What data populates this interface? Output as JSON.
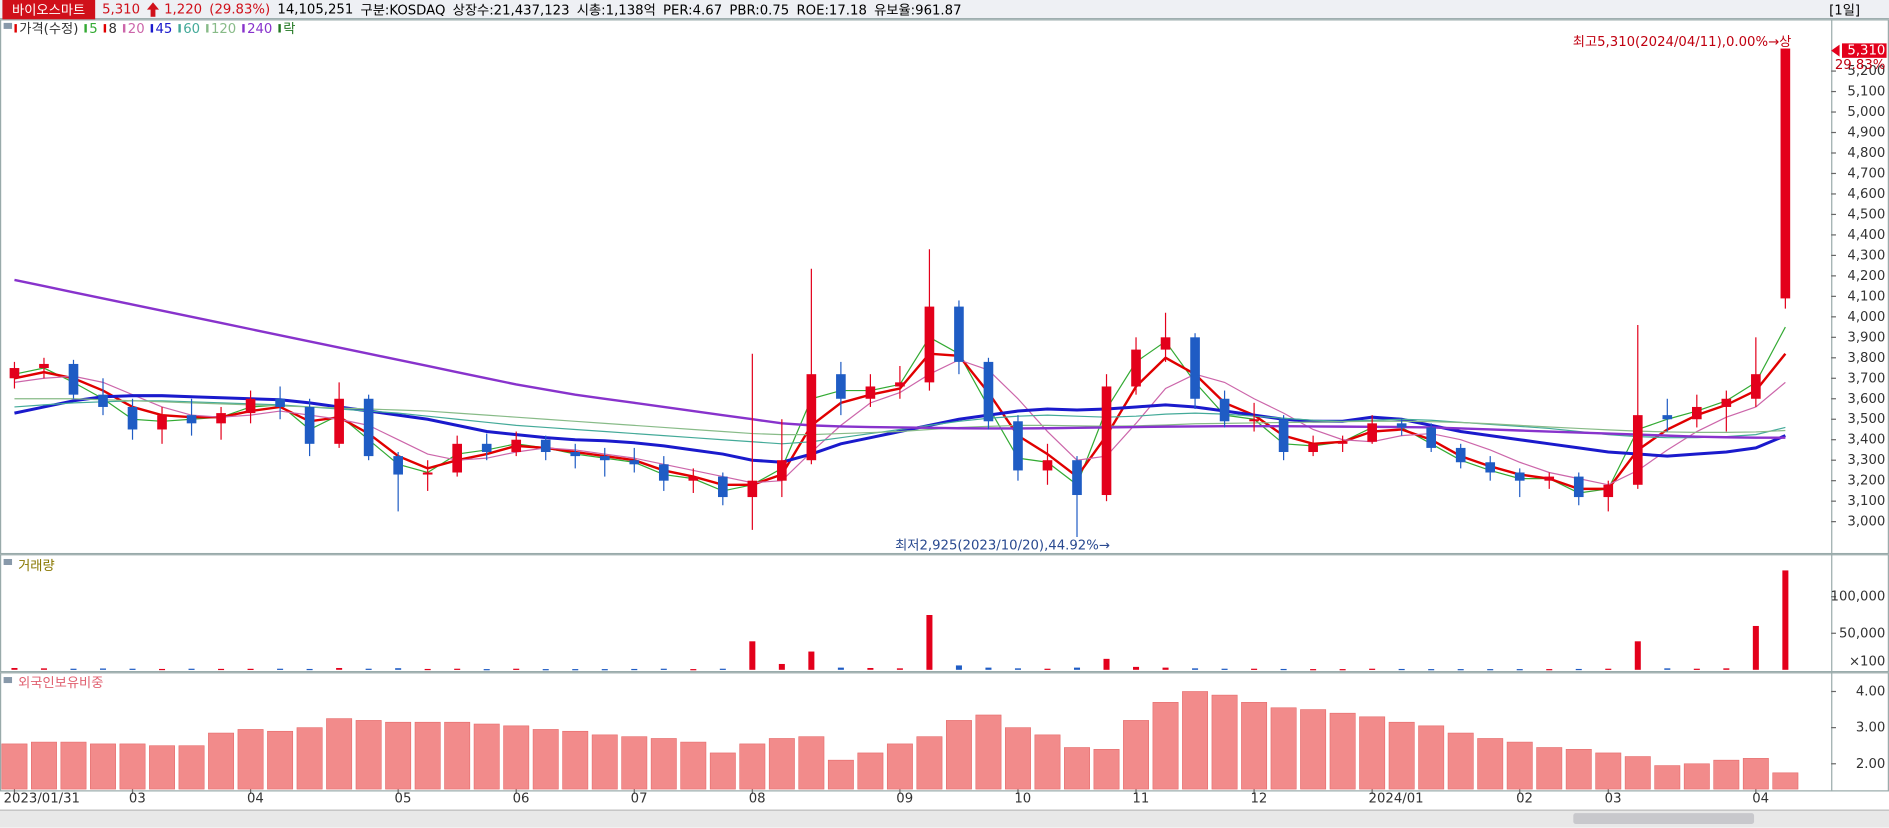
{
  "header": {
    "name": "바이오스마트",
    "price": "5,310",
    "change": "1,220",
    "change_pct": "(29.83%)",
    "volume": "14,105,251",
    "info": [
      "구분:KOSDAQ",
      "상장수:21,437,123",
      "시총:1,138억",
      "PER:4.67",
      "PBR:0.75",
      "ROE:17.18",
      "유보율:961.87"
    ],
    "period": "[1일]"
  },
  "chart_data": [
    {
      "type": "candlestick",
      "price_label": "가격(수정)",
      "legend_extra": "락",
      "categories": [
        "2023/01/31",
        null,
        null,
        null,
        "03",
        null,
        null,
        null,
        "04",
        null,
        null,
        null,
        null,
        "05",
        null,
        null,
        null,
        "06",
        null,
        null,
        null,
        "07",
        null,
        null,
        null,
        "08",
        null,
        null,
        null,
        null,
        "09",
        null,
        null,
        null,
        "10",
        null,
        null,
        null,
        "11",
        null,
        null,
        null,
        "12",
        null,
        null,
        null,
        "2024/01",
        null,
        null,
        null,
        null,
        "02",
        null,
        null,
        "03",
        null,
        null,
        null,
        null,
        "04",
        null
      ],
      "open": [
        3700,
        3750,
        3770,
        3620,
        3560,
        3450,
        3520,
        3480,
        3530,
        3600,
        3560,
        3380,
        3600,
        3320,
        3230,
        3240,
        3380,
        3340,
        3400,
        3340,
        3320,
        3300,
        3280,
        3200,
        3220,
        3120,
        3200,
        3300,
        3720,
        3600,
        3660,
        3680,
        4050,
        3780,
        3490,
        3250,
        3300,
        3130,
        3660,
        3840,
        3900,
        3600,
        3490,
        3500,
        3340,
        3380,
        3390,
        3480,
        3460,
        3360,
        3290,
        3240,
        3200,
        3220,
        3120,
        3180,
        3520,
        3500,
        3560,
        3600,
        4090
      ],
      "high": [
        3780,
        3800,
        3790,
        3700,
        3600,
        3560,
        3600,
        3560,
        3640,
        3660,
        3600,
        3680,
        3620,
        3340,
        3300,
        3420,
        3430,
        3440,
        3420,
        3380,
        3360,
        3360,
        3320,
        3260,
        3240,
        3820,
        3500,
        4235,
        3780,
        3720,
        3760,
        4330,
        4080,
        3800,
        3520,
        3380,
        3320,
        3720,
        3900,
        4020,
        3920,
        3640,
        3580,
        3520,
        3420,
        3420,
        3520,
        3500,
        3480,
        3380,
        3320,
        3260,
        3240,
        3240,
        3200,
        3960,
        3600,
        3620,
        3640,
        3900,
        5310
      ],
      "low": [
        3650,
        3700,
        3600,
        3520,
        3400,
        3380,
        3420,
        3400,
        3480,
        3500,
        3320,
        3360,
        3300,
        3050,
        3150,
        3220,
        3300,
        3320,
        3300,
        3260,
        3220,
        3240,
        3150,
        3140,
        3080,
        2960,
        3120,
        3280,
        3520,
        3560,
        3600,
        3640,
        3720,
        3450,
        3200,
        3180,
        2925,
        3100,
        3620,
        3780,
        3550,
        3460,
        3440,
        3300,
        3320,
        3340,
        3380,
        3420,
        3340,
        3260,
        3200,
        3120,
        3160,
        3080,
        3050,
        3160,
        3440,
        3460,
        3440,
        3560,
        4040
      ],
      "close": [
        3750,
        3770,
        3620,
        3560,
        3450,
        3520,
        3480,
        3530,
        3600,
        3560,
        3380,
        3600,
        3320,
        3230,
        3240,
        3380,
        3340,
        3400,
        3340,
        3320,
        3300,
        3280,
        3200,
        3220,
        3120,
        3200,
        3300,
        3720,
        3600,
        3660,
        3680,
        4050,
        3780,
        3490,
        3250,
        3300,
        3130,
        3660,
        3840,
        3900,
        3600,
        3490,
        3500,
        3340,
        3380,
        3390,
        3480,
        3460,
        3360,
        3290,
        3240,
        3200,
        3220,
        3120,
        3180,
        3520,
        3500,
        3560,
        3600,
        3720,
        5310
      ],
      "up_color": "#e3001b",
      "down_color": "#1f5cc4",
      "series": [
        {
          "name": "5",
          "color": "#33aa33",
          "values": [
            3720,
            3750,
            3680,
            3600,
            3500,
            3490,
            3500,
            3510,
            3560,
            3570,
            3450,
            3520,
            3400,
            3280,
            3240,
            3330,
            3350,
            3380,
            3360,
            3330,
            3310,
            3290,
            3230,
            3210,
            3150,
            3180,
            3260,
            3600,
            3640,
            3640,
            3670,
            3900,
            3820,
            3560,
            3310,
            3290,
            3180,
            3550,
            3780,
            3880,
            3680,
            3520,
            3500,
            3380,
            3370,
            3390,
            3460,
            3460,
            3380,
            3300,
            3250,
            3210,
            3210,
            3140,
            3160,
            3450,
            3500,
            3540,
            3590,
            3680,
            3950
          ]
        },
        {
          "name": "8",
          "color": "#e00000",
          "values": [
            3700,
            3730,
            3700,
            3640,
            3560,
            3520,
            3510,
            3510,
            3540,
            3560,
            3490,
            3510,
            3430,
            3320,
            3260,
            3300,
            3330,
            3370,
            3360,
            3340,
            3320,
            3300,
            3250,
            3220,
            3180,
            3180,
            3230,
            3470,
            3580,
            3620,
            3650,
            3820,
            3810,
            3630,
            3420,
            3330,
            3220,
            3420,
            3660,
            3800,
            3720,
            3580,
            3520,
            3420,
            3380,
            3390,
            3440,
            3450,
            3400,
            3320,
            3270,
            3230,
            3210,
            3160,
            3160,
            3350,
            3450,
            3520,
            3570,
            3640,
            3820
          ]
        },
        {
          "name": "20",
          "color": "#cc66aa",
          "values": [
            3680,
            3700,
            3710,
            3680,
            3620,
            3560,
            3520,
            3510,
            3520,
            3540,
            3520,
            3500,
            3470,
            3400,
            3330,
            3300,
            3310,
            3340,
            3360,
            3350,
            3330,
            3310,
            3280,
            3250,
            3220,
            3190,
            3200,
            3340,
            3470,
            3580,
            3630,
            3720,
            3790,
            3740,
            3600,
            3440,
            3300,
            3320,
            3480,
            3650,
            3720,
            3680,
            3600,
            3530,
            3450,
            3400,
            3390,
            3420,
            3430,
            3400,
            3350,
            3290,
            3240,
            3210,
            3180,
            3250,
            3350,
            3440,
            3510,
            3560,
            3680
          ]
        },
        {
          "name": "45",
          "color": "#1a1acc",
          "values": [
            3530,
            3560,
            3590,
            3610,
            3615,
            3615,
            3610,
            3605,
            3600,
            3595,
            3580,
            3560,
            3540,
            3520,
            3500,
            3470,
            3440,
            3425,
            3410,
            3400,
            3395,
            3385,
            3370,
            3350,
            3330,
            3300,
            3290,
            3330,
            3380,
            3410,
            3440,
            3470,
            3500,
            3520,
            3540,
            3550,
            3545,
            3550,
            3560,
            3570,
            3560,
            3540,
            3520,
            3500,
            3490,
            3490,
            3510,
            3500,
            3470,
            3440,
            3420,
            3400,
            3380,
            3360,
            3340,
            3330,
            3320,
            3330,
            3340,
            3360,
            3420
          ]
        },
        {
          "name": "60",
          "color": "#44aa99",
          "values": [
            3560,
            3570,
            3580,
            3585,
            3590,
            3590,
            3585,
            3580,
            3575,
            3570,
            3560,
            3550,
            3540,
            3530,
            3515,
            3500,
            3485,
            3470,
            3460,
            3450,
            3440,
            3430,
            3420,
            3410,
            3400,
            3390,
            3380,
            3390,
            3410,
            3430,
            3450,
            3470,
            3490,
            3505,
            3515,
            3520,
            3515,
            3510,
            3515,
            3525,
            3530,
            3525,
            3515,
            3505,
            3495,
            3490,
            3495,
            3500,
            3495,
            3485,
            3475,
            3465,
            3455,
            3440,
            3425,
            3415,
            3410,
            3410,
            3415,
            3425,
            3460
          ]
        },
        {
          "name": "120",
          "color": "#88bb88",
          "values": [
            3600,
            3600,
            3600,
            3595,
            3590,
            3585,
            3580,
            3575,
            3570,
            3565,
            3560,
            3555,
            3550,
            3545,
            3540,
            3530,
            3520,
            3510,
            3500,
            3490,
            3480,
            3470,
            3460,
            3450,
            3440,
            3430,
            3425,
            3425,
            3430,
            3435,
            3440,
            3450,
            3460,
            3465,
            3470,
            3470,
            3468,
            3466,
            3468,
            3472,
            3478,
            3480,
            3482,
            3484,
            3486,
            3488,
            3490,
            3490,
            3488,
            3484,
            3478,
            3470,
            3462,
            3455,
            3448,
            3442,
            3438,
            3436,
            3436,
            3438,
            3445
          ]
        },
        {
          "name": "240",
          "color": "#8833cc",
          "values": [
            4180,
            4150,
            4120,
            4090,
            4060,
            4030,
            4000,
            3970,
            3940,
            3910,
            3880,
            3850,
            3820,
            3790,
            3760,
            3730,
            3700,
            3670,
            3645,
            3620,
            3600,
            3580,
            3560,
            3540,
            3520,
            3500,
            3480,
            3470,
            3465,
            3462,
            3460,
            3458,
            3456,
            3455,
            3455,
            3456,
            3458,
            3460,
            3462,
            3464,
            3465,
            3466,
            3466,
            3466,
            3465,
            3464,
            3463,
            3462,
            3460,
            3455,
            3450,
            3445,
            3440,
            3435,
            3430,
            3425,
            3420,
            3415,
            3412,
            3410,
            3410
          ]
        }
      ],
      "ylim": [
        2853,
        5447
      ],
      "yticks": [
        {
          "value": 3000,
          "label": "3,000"
        },
        {
          "value": 3100,
          "label": "3,100"
        },
        {
          "value": 3200,
          "label": "3,200"
        },
        {
          "value": 3300,
          "label": "3,300"
        },
        {
          "value": 3400,
          "label": "3,400"
        },
        {
          "value": 3500,
          "label": "3,500"
        },
        {
          "value": 3600,
          "label": "3,600"
        },
        {
          "value": 3700,
          "label": "3,700"
        },
        {
          "value": 3800,
          "label": "3,800"
        },
        {
          "value": 3900,
          "label": "3,900"
        },
        {
          "value": 4000,
          "label": "4,000"
        },
        {
          "value": 4100,
          "label": "4,100"
        },
        {
          "value": 4200,
          "label": "4,200"
        },
        {
          "value": 4300,
          "label": "4,300"
        },
        {
          "value": 4400,
          "label": "4,400"
        },
        {
          "value": 4500,
          "label": "4,500"
        },
        {
          "value": 4600,
          "label": "4,600"
        },
        {
          "value": 4700,
          "label": "4,700"
        },
        {
          "value": 4800,
          "label": "4,800"
        },
        {
          "value": 4900,
          "label": "4,900"
        },
        {
          "value": 5000,
          "label": "5,000"
        },
        {
          "value": 5100,
          "label": "5,100"
        },
        {
          "value": 5200,
          "label": "5,200"
        }
      ],
      "high_label": "최고5,310(2024/04/11),0.00%→상",
      "low_label": "최저2,925(2023/10/20),44.92%→",
      "last_label": "5,310",
      "change_label": "29.83%"
    },
    {
      "type": "bar",
      "title": "거래량",
      "y_unit_label": "×100",
      "values": [
        2500,
        2000,
        1500,
        1800,
        1500,
        1200,
        1500,
        1300,
        1400,
        1500,
        1200,
        2500,
        1500,
        2200,
        1200,
        1500,
        1000,
        1500,
        1000,
        1000,
        1000,
        1200,
        1500,
        1000,
        1500,
        39000,
        8000,
        25000,
        3000,
        2500,
        2000,
        75000,
        6000,
        3000,
        2000,
        1500,
        3000,
        15000,
        4000,
        3000,
        2000,
        1500,
        1500,
        1200,
        1000,
        1000,
        1500,
        1200,
        1000,
        1000,
        1000,
        1000,
        1000,
        1200,
        1500,
        39000,
        2000,
        1500,
        2000,
        60000,
        136000
      ],
      "ylim": [
        0,
        150000
      ],
      "yticks": [
        {
          "value": 100000,
          "label": "100,000"
        },
        {
          "value": 50000,
          "label": "50,000"
        }
      ]
    },
    {
      "type": "bar",
      "title": "외국인보유비중",
      "color": "#f28b8b",
      "values": [
        2.55,
        2.6,
        2.6,
        2.55,
        2.55,
        2.5,
        2.5,
        2.85,
        2.95,
        2.9,
        3.0,
        3.25,
        3.2,
        3.15,
        3.15,
        3.15,
        3.1,
        3.05,
        2.95,
        2.9,
        2.8,
        2.75,
        2.7,
        2.6,
        2.3,
        2.55,
        2.7,
        2.75,
        2.1,
        2.3,
        2.55,
        2.75,
        3.2,
        3.35,
        3.0,
        2.8,
        2.45,
        2.4,
        3.2,
        3.7,
        4.0,
        3.9,
        3.7,
        3.55,
        3.5,
        3.4,
        3.3,
        3.15,
        3.05,
        2.85,
        2.7,
        2.6,
        2.45,
        2.4,
        2.3,
        2.2,
        1.95,
        2.0,
        2.1,
        2.15,
        1.75
      ],
      "ylim": [
        1.3,
        4.4
      ],
      "yticks": [
        {
          "value": 4,
          "label": "4.00"
        },
        {
          "value": 3,
          "label": "3.00"
        },
        {
          "value": 2,
          "label": "2.00"
        }
      ]
    }
  ]
}
